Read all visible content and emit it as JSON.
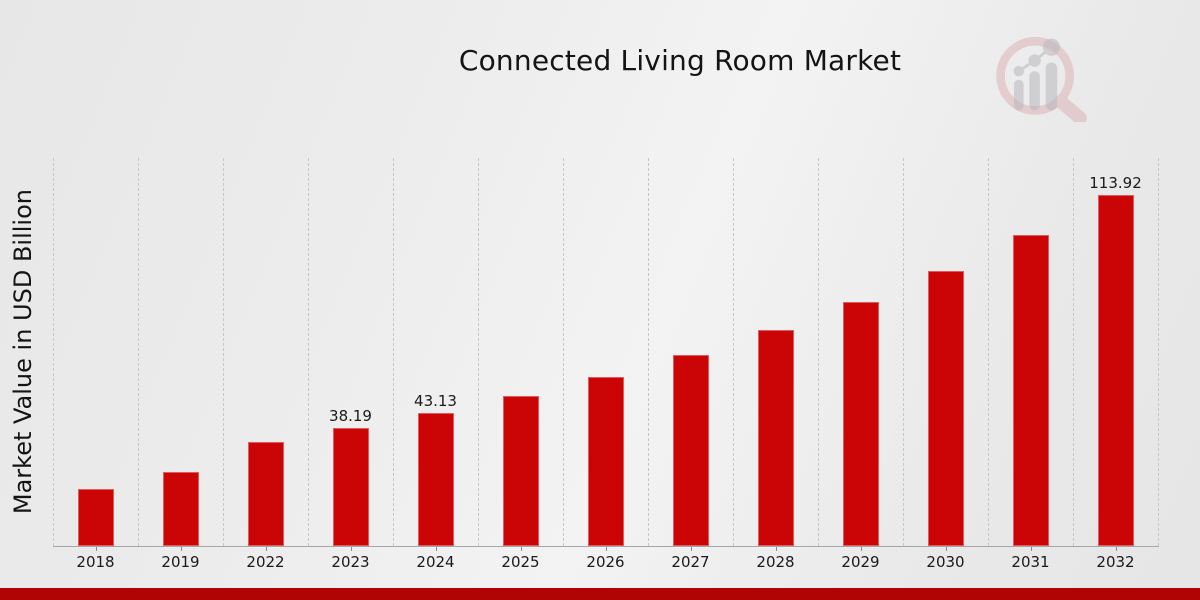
{
  "chart_data": {
    "type": "bar",
    "title": "Connected Living Room Market",
    "ylabel": "Market Value in USD Billion",
    "xlabel": "",
    "categories": [
      "2018",
      "2019",
      "2022",
      "2023",
      "2024",
      "2025",
      "2026",
      "2027",
      "2028",
      "2029",
      "2030",
      "2031",
      "2032"
    ],
    "values": [
      18.5,
      23.9,
      33.83,
      38.19,
      43.13,
      48.7,
      55.0,
      62.1,
      70.1,
      79.1,
      89.4,
      100.9,
      113.92
    ],
    "value_labels": [
      "",
      "",
      "",
      "38.19",
      "43.13",
      "",
      "",
      "",
      "",
      "",
      "",
      "",
      "113.92"
    ],
    "ylim": [
      0,
      126
    ],
    "grid": "vertical-dashed",
    "legend": "none",
    "bar_color": "#cb0505",
    "bottom_band_color": "#b00404",
    "logo_icon": "magnifier-bar-chart-logo-icon"
  }
}
